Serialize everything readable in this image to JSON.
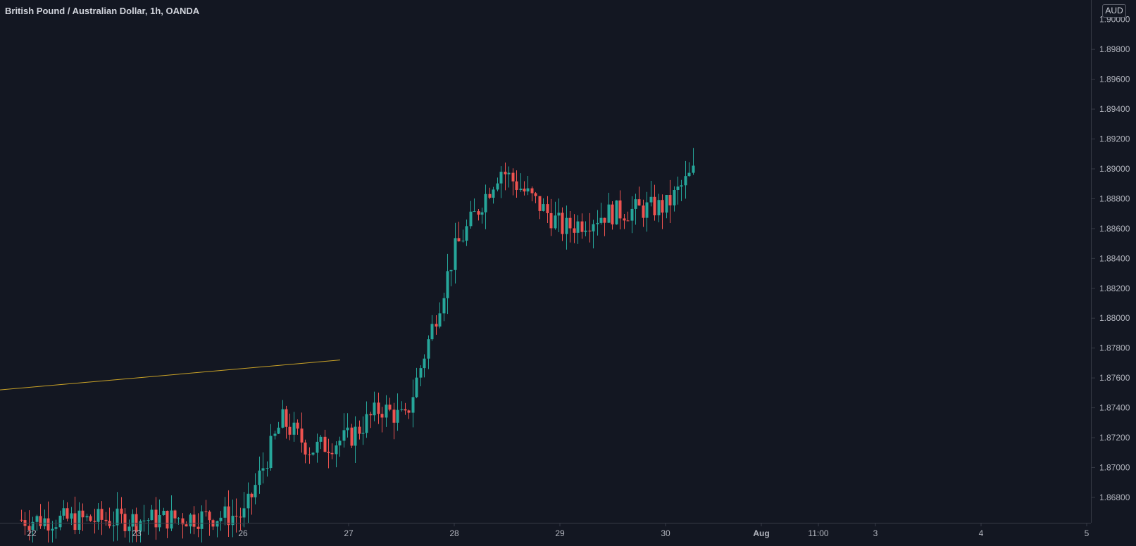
{
  "header": {
    "symbol_title": "British Pound / Australian Dollar, 1h, OANDA"
  },
  "price_axis": {
    "currency_badge": "AUD",
    "partial_top_label": "1.90000",
    "labels": [
      "1.89800",
      "1.89600",
      "1.89400",
      "1.89200",
      "1.89000",
      "1.88800",
      "1.88600",
      "1.88400",
      "1.88200",
      "1.88000",
      "1.87800",
      "1.87600",
      "1.87400",
      "1.87200",
      "1.87000",
      "1.86800"
    ]
  },
  "time_axis": {
    "labels": [
      "22",
      "23",
      "26",
      "27",
      "28",
      "29",
      "30",
      "Aug",
      "11:00",
      "3",
      "4",
      "5"
    ]
  },
  "colors": {
    "background": "#131722",
    "bull": "#26a69a",
    "bear": "#ef5350",
    "trendline": "#c9a227",
    "axis_text": "#b2b5be",
    "axis_line": "#363a45"
  },
  "chart_data": {
    "type": "candlestick",
    "title": "British Pound / Australian Dollar, 1h, OANDA",
    "y_axis_unit": "AUD",
    "ylim": [
      1.8663,
      1.9006
    ],
    "grid": false,
    "x_ticks": [
      "22",
      "23",
      "26",
      "27",
      "28",
      "29",
      "30",
      "Aug",
      "11:00",
      "3",
      "4",
      "5"
    ],
    "close_series_approx": [
      {
        "t": "23",
        "close": 1.8665
      },
      {
        "t": "26",
        "close": 1.8668
      },
      {
        "t": "26 mid",
        "close": 1.8732
      },
      {
        "t": "26 late",
        "close": 1.8712
      },
      {
        "t": "27",
        "close": 1.872
      },
      {
        "t": "27 mid",
        "close": 1.874
      },
      {
        "t": "27 late",
        "close": 1.8732
      },
      {
        "t": "28",
        "close": 1.8845
      },
      {
        "t": "28 late",
        "close": 1.89
      },
      {
        "t": "29",
        "close": 1.886
      },
      {
        "t": "29 late",
        "close": 1.887
      },
      {
        "t": "30",
        "close": 1.8875
      },
      {
        "t": "30 last",
        "close": 1.89
      }
    ],
    "trendline": {
      "start": {
        "t": "22 (left edge)",
        "price": 1.8752
      },
      "end": {
        "t": "27 (approx)",
        "price": 1.8772
      }
    }
  }
}
